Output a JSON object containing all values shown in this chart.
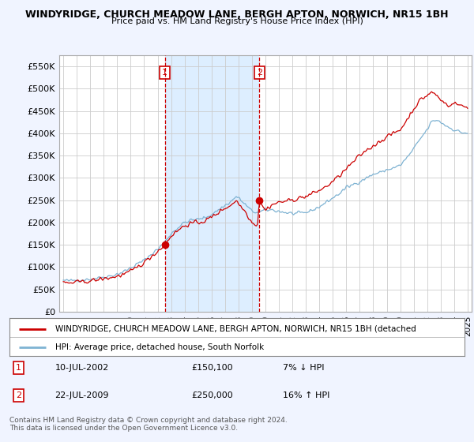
{
  "title": "WINDYRIDGE, CHURCH MEADOW LANE, BERGH APTON, NORWICH, NR15 1BH",
  "subtitle": "Price paid vs. HM Land Registry's House Price Index (HPI)",
  "ylabel_ticks": [
    "£0",
    "£50K",
    "£100K",
    "£150K",
    "£200K",
    "£250K",
    "£300K",
    "£350K",
    "£400K",
    "£450K",
    "£500K",
    "£550K"
  ],
  "ytick_values": [
    0,
    50000,
    100000,
    150000,
    200000,
    250000,
    300000,
    350000,
    400000,
    450000,
    500000,
    550000
  ],
  "ylim": [
    0,
    575000
  ],
  "legend_line1": "WINDYRIDGE, CHURCH MEADOW LANE, BERGH APTON, NORWICH, NR15 1BH (detached",
  "legend_line2": "HPI: Average price, detached house, South Norfolk",
  "marker1_year": 2002.53,
  "marker1_value": 150100,
  "marker1_label": "1",
  "marker1_date": "10-JUL-2002",
  "marker1_price": "£150,100",
  "marker1_hpi": "7% ↓ HPI",
  "marker2_year": 2009.55,
  "marker2_value": 250000,
  "marker2_label": "2",
  "marker2_date": "22-JUL-2009",
  "marker2_price": "£250,000",
  "marker2_hpi": "16% ↑ HPI",
  "footer": "Contains HM Land Registry data © Crown copyright and database right 2024.\nThis data is licensed under the Open Government Licence v3.0.",
  "bg_color": "#f0f4ff",
  "plot_bg_color": "#ffffff",
  "red_color": "#cc0000",
  "blue_color": "#7fb3d3",
  "shade_color": "#ddeeff",
  "marker_vline_color": "#cc0000",
  "grid_color": "#cccccc"
}
